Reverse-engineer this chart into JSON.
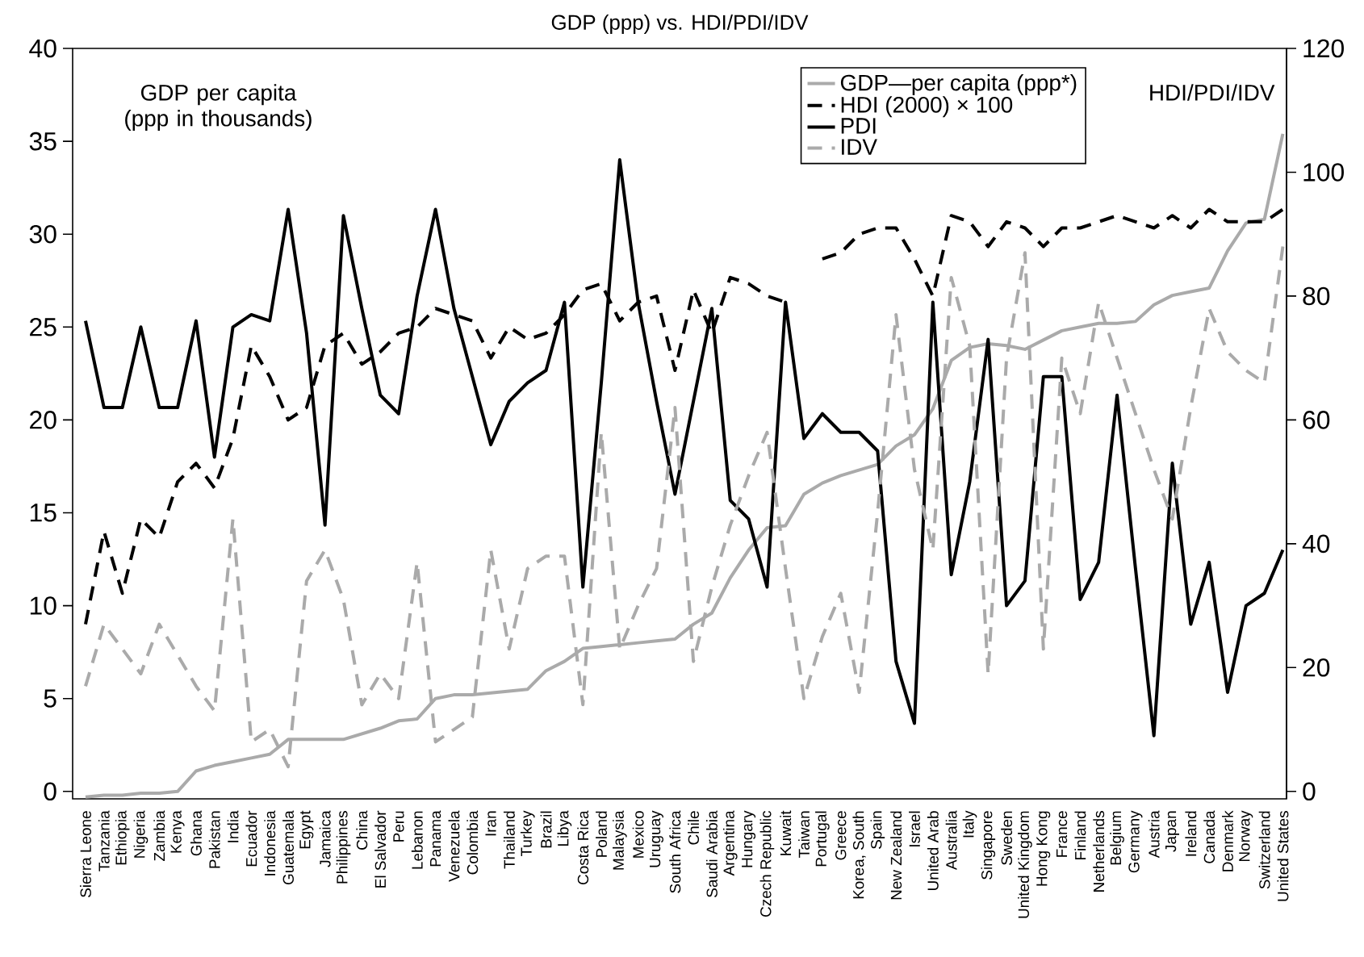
{
  "chart_data": {
    "type": "line",
    "title": "GDP (ppp) vs. HDI/PDI/IDV",
    "ylabel": "GDP per capita (ppp in thousands)",
    "y2label": "HDI/PDI/IDV",
    "categories": [
      "Sierra Leone",
      "Tanzania",
      "Ethiopia",
      "Nigeria",
      "Zambia",
      "Kenya",
      "Ghana",
      "Pakistan",
      "India",
      "Ecuador",
      "Indonesia",
      "Guatemala",
      "Egypt",
      "Jamaica",
      "Philippines",
      "China",
      "El Salvador",
      "Peru",
      "Lebanon",
      "Panama",
      "Venezuela",
      "Colombia",
      "Iran",
      "Thailand",
      "Turkey",
      "Brazil",
      "Libya",
      "Costa Rica",
      "Poland",
      "Malaysia",
      "Mexico",
      "Uruguay",
      "South Africa",
      "Chile",
      "Saudi Arabia",
      "Argentina",
      "Hungary",
      "Czech Republic",
      "Kuwait",
      "Taiwan",
      "Portugal",
      "Greece",
      "Korea, South",
      "Spain",
      "New Zealand",
      "Israel",
      "United Arab",
      "Australia",
      "Italy",
      "Singapore",
      "Sweden",
      "United Kingdom",
      "Hong Kong",
      "France",
      "Finland",
      "Netherlands",
      "Belgium",
      "Germany",
      "Austria",
      "Japan",
      "Ireland",
      "Canada",
      "Denmark",
      "Norway",
      "Switzerland",
      "United States"
    ],
    "series": [
      {
        "name": "GDP—per capita (ppp*)",
        "color": "#aaaaaa",
        "line_style": "solid",
        "values": [
          -0.3,
          -0.2,
          -0.2,
          -0.1,
          -0.1,
          0.0,
          1.1,
          1.4,
          1.6,
          1.8,
          2.0,
          2.8,
          2.8,
          2.8,
          2.8,
          3.1,
          3.4,
          3.8,
          3.9,
          5.0,
          5.2,
          5.2,
          5.3,
          5.4,
          5.5,
          6.5,
          7.0,
          7.7,
          7.8,
          7.9,
          8.0,
          8.1,
          8.2,
          9.0,
          9.6,
          11.5,
          13.0,
          14.2,
          14.3,
          16.0,
          16.6,
          17.0,
          17.3,
          17.6,
          18.6,
          19.2,
          20.6,
          23.2,
          23.9,
          24.1,
          24.0,
          23.8,
          24.3,
          24.8,
          25.0,
          25.2,
          25.2,
          25.3,
          26.2,
          26.7,
          26.9,
          27.1,
          29.1,
          30.6,
          30.8,
          35.4
        ]
      },
      {
        "name": "HDI (2000) × 100",
        "color": "#000000",
        "line_style": "dashed",
        "axis": "y2",
        "values": [
          27,
          42,
          32,
          44,
          41,
          50,
          53,
          49,
          57,
          72,
          67,
          60,
          62,
          72,
          74,
          69,
          71,
          74,
          75,
          78,
          77,
          76,
          70,
          75,
          73,
          74,
          77,
          81,
          82,
          76,
          79,
          80,
          68,
          81,
          74,
          83,
          82,
          80,
          79,
          null,
          86,
          87,
          90,
          91,
          91,
          86,
          80,
          93,
          92,
          88,
          92,
          91,
          88,
          91,
          91,
          92,
          93,
          92,
          91,
          93,
          91,
          94,
          92,
          92,
          92,
          94
        ]
      },
      {
        "name": "PDI",
        "color": "#000000",
        "line_style": "solid",
        "axis": "y2",
        "values": [
          76,
          62,
          62,
          75,
          62,
          62,
          76,
          54,
          75,
          77,
          76,
          94,
          74,
          43,
          93,
          78,
          64,
          61,
          80,
          94,
          78,
          67,
          56,
          63,
          66,
          68,
          79,
          33,
          66,
          102,
          79,
          63,
          48,
          63,
          78,
          47,
          44,
          33,
          79,
          57,
          61,
          58,
          58,
          55,
          21,
          11,
          79,
          35,
          50,
          73,
          30,
          34,
          67,
          67,
          31,
          37,
          64,
          36,
          9,
          53,
          27,
          37,
          16,
          30,
          32,
          39
        ]
      },
      {
        "name": "IDV",
        "color": "#aaaaaa",
        "line_style": "dashed",
        "axis": "y2",
        "values": [
          17,
          27,
          23,
          19,
          27,
          22,
          17,
          13,
          44,
          8,
          10,
          4,
          34,
          39,
          31,
          14,
          19,
          15,
          37,
          8,
          10,
          12,
          39,
          23,
          36,
          38,
          38,
          14,
          58,
          23,
          30,
          36,
          62,
          21,
          33,
          43,
          51,
          58,
          36,
          15,
          25,
          32,
          16,
          45,
          77,
          52,
          39,
          83,
          72,
          19,
          70,
          87,
          23,
          70,
          61,
          79,
          70,
          61,
          52,
          44,
          62,
          78,
          71,
          68,
          66,
          88
        ]
      }
    ],
    "ylim": [
      -0.4,
      40
    ],
    "yticks": [
      0,
      5,
      10,
      15,
      20,
      25,
      30,
      35,
      40
    ],
    "y2lim": [
      -1.2,
      120
    ],
    "y2ticks": [
      0,
      20,
      40,
      60,
      80,
      100,
      120
    ],
    "legend": "top right",
    "grid": false
  }
}
